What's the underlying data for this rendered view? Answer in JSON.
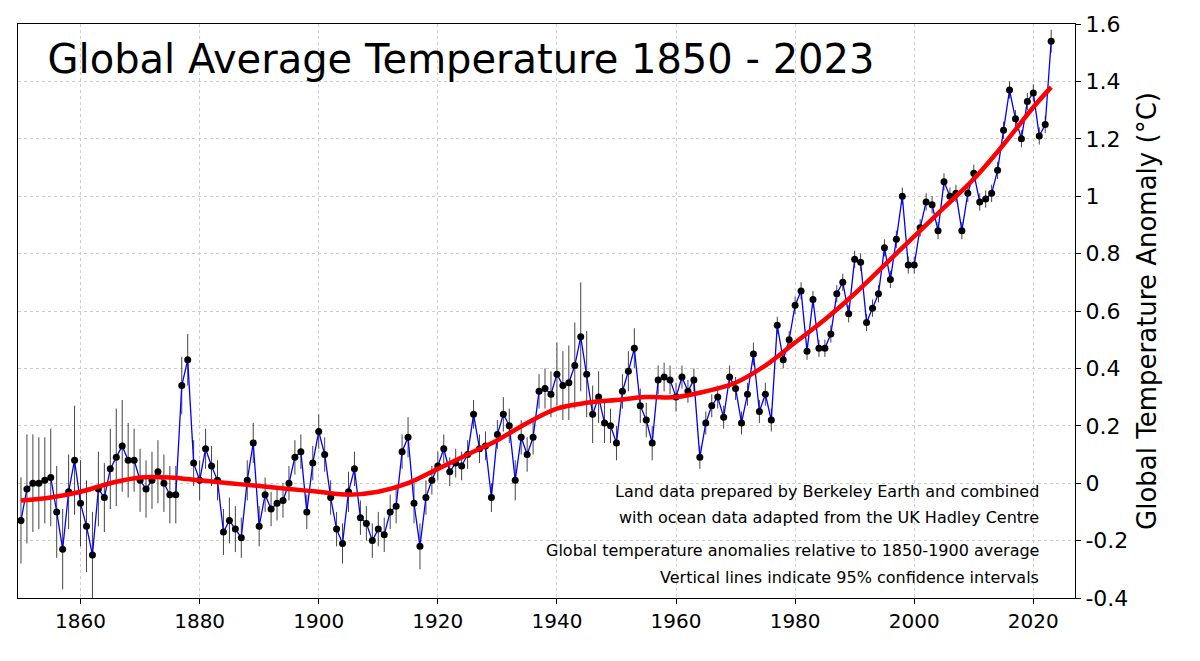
{
  "chart_data": {
    "type": "line",
    "title": "Global Average Temperature 1850 - 2023",
    "y_label": "Global Temperature Anomaly (°C)",
    "annotations": [
      "Land data prepared by Berkeley Earth and combined",
      "with ocean data adapted from the UK Hadley Centre",
      "Global temperature anomalies relative to 1850-1900 average",
      "Vertical lines indicate 95% confidence intervals"
    ],
    "xlim": [
      1849.5,
      2027
    ],
    "xticks": [
      1860,
      1880,
      1900,
      1920,
      1940,
      1960,
      1980,
      2000,
      2020
    ],
    "ylim": [
      -0.4,
      1.6
    ],
    "yticks": [
      -0.4,
      -0.2,
      0,
      0.2,
      0.4,
      0.6,
      0.8,
      1,
      1.2,
      1.4,
      1.6
    ],
    "grid": true,
    "series": [
      {
        "type": "line",
        "color": "#0000ff",
        "marker": "circle",
        "x": [
          1850,
          1851,
          1852,
          1853,
          1854,
          1855,
          1856,
          1857,
          1858,
          1859,
          1860,
          1861,
          1862,
          1863,
          1864,
          1865,
          1866,
          1867,
          1868,
          1869,
          1870,
          1871,
          1872,
          1873,
          1874,
          1875,
          1876,
          1877,
          1878,
          1879,
          1880,
          1881,
          1882,
          1883,
          1884,
          1885,
          1886,
          1887,
          1888,
          1889,
          1890,
          1891,
          1892,
          1893,
          1894,
          1895,
          1896,
          1897,
          1898,
          1899,
          1900,
          1901,
          1902,
          1903,
          1904,
          1905,
          1906,
          1907,
          1908,
          1909,
          1910,
          1911,
          1912,
          1913,
          1914,
          1915,
          1916,
          1917,
          1918,
          1919,
          1920,
          1921,
          1922,
          1923,
          1924,
          1925,
          1926,
          1927,
          1928,
          1929,
          1930,
          1931,
          1932,
          1933,
          1934,
          1935,
          1936,
          1937,
          1938,
          1939,
          1940,
          1941,
          1942,
          1943,
          1944,
          1945,
          1946,
          1947,
          1948,
          1949,
          1950,
          1951,
          1952,
          1953,
          1954,
          1955,
          1956,
          1957,
          1958,
          1959,
          1960,
          1961,
          1962,
          1963,
          1964,
          1965,
          1966,
          1967,
          1968,
          1969,
          1970,
          1971,
          1972,
          1973,
          1974,
          1975,
          1976,
          1977,
          1978,
          1979,
          1980,
          1981,
          1982,
          1983,
          1984,
          1985,
          1986,
          1987,
          1988,
          1989,
          1990,
          1991,
          1992,
          1993,
          1994,
          1995,
          1996,
          1997,
          1998,
          1999,
          2000,
          2001,
          2002,
          2003,
          2004,
          2005,
          2006,
          2007,
          2008,
          2009,
          2010,
          2011,
          2012,
          2013,
          2014,
          2015,
          2016,
          2017,
          2018,
          2019,
          2020,
          2021,
          2022,
          2023
        ],
        "values": [
          -0.13,
          -0.02,
          0.0,
          0.0,
          0.01,
          0.02,
          -0.1,
          -0.23,
          -0.03,
          0.08,
          -0.07,
          -0.15,
          -0.25,
          -0.02,
          -0.05,
          0.05,
          0.09,
          0.13,
          0.08,
          0.08,
          0.01,
          -0.02,
          0.01,
          0.04,
          0.0,
          -0.04,
          -0.04,
          0.34,
          0.43,
          0.07,
          0.01,
          0.12,
          0.06,
          0.01,
          -0.17,
          -0.13,
          -0.16,
          -0.19,
          0.01,
          0.14,
          -0.15,
          -0.04,
          -0.09,
          -0.07,
          -0.06,
          0.0,
          0.09,
          0.11,
          -0.1,
          0.07,
          0.18,
          0.1,
          -0.05,
          -0.16,
          -0.21,
          -0.03,
          0.05,
          -0.12,
          -0.14,
          -0.2,
          -0.16,
          -0.18,
          -0.1,
          -0.08,
          0.11,
          0.16,
          -0.07,
          -0.22,
          -0.05,
          0.01,
          0.06,
          0.12,
          0.04,
          0.07,
          0.06,
          0.1,
          0.24,
          0.12,
          0.13,
          -0.05,
          0.17,
          0.24,
          0.2,
          0.01,
          0.16,
          0.1,
          0.16,
          0.32,
          0.33,
          0.31,
          0.38,
          0.34,
          0.35,
          0.41,
          0.51,
          0.38,
          0.24,
          0.3,
          0.21,
          0.2,
          0.14,
          0.32,
          0.39,
          0.47,
          0.27,
          0.22,
          0.14,
          0.36,
          0.37,
          0.36,
          0.3,
          0.37,
          0.32,
          0.36,
          0.09,
          0.21,
          0.27,
          0.3,
          0.23,
          0.37,
          0.33,
          0.21,
          0.31,
          0.45,
          0.25,
          0.31,
          0.22,
          0.55,
          0.43,
          0.5,
          0.62,
          0.67,
          0.46,
          0.64,
          0.47,
          0.47,
          0.52,
          0.66,
          0.7,
          0.59,
          0.78,
          0.77,
          0.56,
          0.61,
          0.66,
          0.82,
          0.71,
          0.85,
          1.0,
          0.76,
          0.76,
          0.89,
          0.98,
          0.97,
          0.88,
          1.05,
          1.0,
          1.01,
          0.88,
          1.01,
          1.08,
          0.98,
          0.99,
          1.01,
          1.09,
          1.23,
          1.37,
          1.27,
          1.2,
          1.33,
          1.36,
          1.21,
          1.25,
          1.54
        ],
        "errors": [
          0.15,
          0.19,
          0.17,
          0.16,
          0.15,
          0.17,
          0.16,
          0.14,
          0.13,
          0.19,
          0.15,
          0.16,
          0.15,
          0.13,
          0.12,
          0.14,
          0.17,
          0.16,
          0.13,
          0.11,
          0.11,
          0.1,
          0.1,
          0.11,
          0.1,
          0.1,
          0.1,
          0.1,
          0.09,
          0.08,
          0.07,
          0.07,
          0.07,
          0.07,
          0.08,
          0.08,
          0.08,
          0.07,
          0.07,
          0.07,
          0.07,
          0.06,
          0.06,
          0.06,
          0.06,
          0.06,
          0.06,
          0.06,
          0.06,
          0.06,
          0.06,
          0.06,
          0.06,
          0.06,
          0.07,
          0.07,
          0.06,
          0.06,
          0.06,
          0.06,
          0.06,
          0.06,
          0.06,
          0.06,
          0.06,
          0.07,
          0.07,
          0.08,
          0.06,
          0.05,
          0.05,
          0.05,
          0.05,
          0.05,
          0.05,
          0.05,
          0.05,
          0.05,
          0.05,
          0.05,
          0.05,
          0.06,
          0.06,
          0.07,
          0.06,
          0.06,
          0.06,
          0.06,
          0.07,
          0.08,
          0.11,
          0.12,
          0.13,
          0.15,
          0.19,
          0.15,
          0.1,
          0.09,
          0.07,
          0.06,
          0.06,
          0.06,
          0.07,
          0.07,
          0.06,
          0.06,
          0.06,
          0.05,
          0.05,
          0.05,
          0.05,
          0.04,
          0.04,
          0.04,
          0.04,
          0.04,
          0.04,
          0.04,
          0.04,
          0.04,
          0.04,
          0.04,
          0.04,
          0.04,
          0.04,
          0.04,
          0.04,
          0.03,
          0.03,
          0.03,
          0.03,
          0.03,
          0.03,
          0.03,
          0.03,
          0.03,
          0.03,
          0.03,
          0.03,
          0.03,
          0.03,
          0.03,
          0.03,
          0.03,
          0.03,
          0.03,
          0.03,
          0.03,
          0.03,
          0.03,
          0.03,
          0.03,
          0.03,
          0.03,
          0.03,
          0.03,
          0.03,
          0.03,
          0.03,
          0.03,
          0.03,
          0.03,
          0.03,
          0.03,
          0.03,
          0.03,
          0.03,
          0.03,
          0.03,
          0.03,
          0.03,
          0.03,
          0.03,
          0.04
        ]
      },
      {
        "type": "line",
        "color": "#ff0000",
        "line_style": "smooth",
        "x": [
          1850,
          1855,
          1860,
          1865,
          1870,
          1875,
          1880,
          1885,
          1890,
          1895,
          1900,
          1905,
          1910,
          1915,
          1920,
          1925,
          1930,
          1935,
          1940,
          1945,
          1950,
          1955,
          1960,
          1965,
          1970,
          1975,
          1980,
          1985,
          1990,
          1995,
          2000,
          2005,
          2010,
          2015,
          2020,
          2023
        ],
        "values": [
          -0.06,
          -0.05,
          -0.03,
          0.0,
          0.02,
          0.02,
          0.01,
          0.0,
          -0.01,
          -0.02,
          -0.03,
          -0.04,
          -0.03,
          0.0,
          0.05,
          0.1,
          0.15,
          0.21,
          0.26,
          0.28,
          0.29,
          0.3,
          0.3,
          0.32,
          0.35,
          0.41,
          0.49,
          0.57,
          0.66,
          0.76,
          0.86,
          0.96,
          1.06,
          1.18,
          1.31,
          1.38
        ]
      }
    ]
  }
}
